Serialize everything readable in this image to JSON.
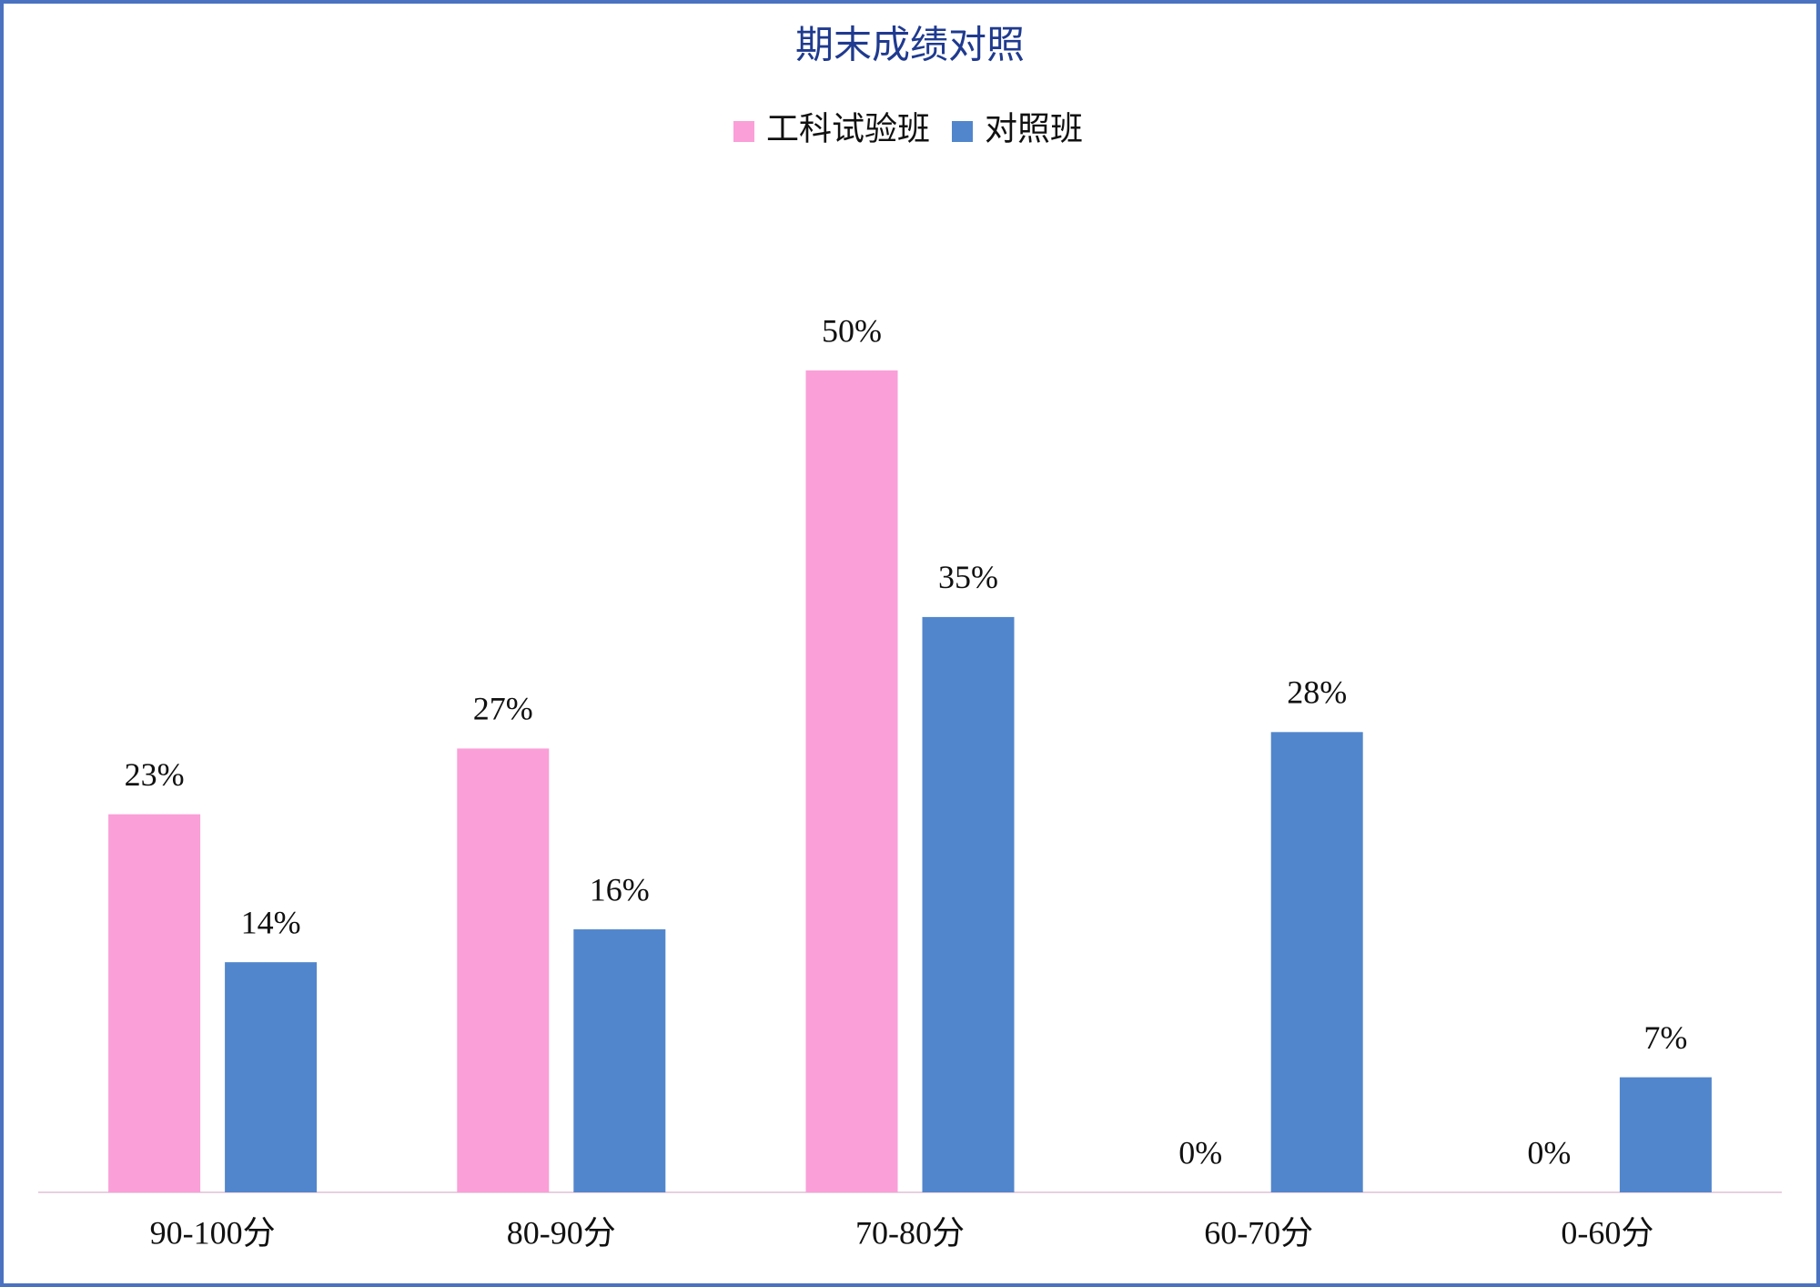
{
  "chart_data": {
    "type": "bar",
    "title": "期末成绩对照",
    "categories": [
      "90-100分",
      "80-90分",
      "70-80分",
      "60-70分",
      "0-60分"
    ],
    "series": [
      {
        "name": "工科试验班",
        "color": "#fa9fd8",
        "values": [
          23,
          27,
          50,
          0,
          0
        ],
        "value_labels": [
          "23%",
          "27%",
          "50%",
          "0%",
          "0%"
        ]
      },
      {
        "name": "对照班",
        "color": "#5186cc",
        "values": [
          14,
          16,
          35,
          28,
          7
        ],
        "value_labels": [
          "14%",
          "16%",
          "35%",
          "28%",
          "7%"
        ]
      }
    ],
    "legend": "top"
  }
}
